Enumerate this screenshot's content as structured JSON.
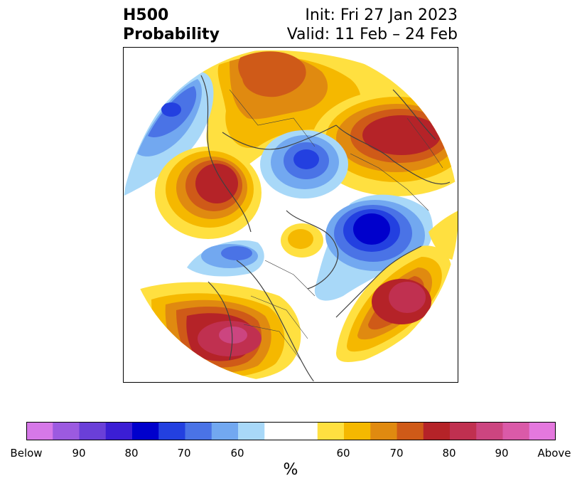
{
  "title": {
    "left_line1": "H500",
    "left_line2": "Probability",
    "right_line1": "Init: Fri 27 Jan 2023",
    "right_line2": "Valid: 11 Feb – 24 Feb"
  },
  "colorbar": {
    "unit": "%",
    "ticks": [
      "Below",
      "90",
      "80",
      "70",
      "60",
      "60",
      "70",
      "80",
      "90",
      "Above"
    ],
    "colors": [
      "#d678e8",
      "#9c5ae0",
      "#6a3fd8",
      "#3b1ed4",
      "#0000cc",
      "#2340e0",
      "#4a73e6",
      "#72a8f0",
      "#a8d8f8",
      "#ffffff",
      "#ffe040",
      "#f5b800",
      "#e08a10",
      "#cf5a18",
      "#b52328",
      "#c03050",
      "#cc4580",
      "#da5aa8",
      "#e478de"
    ]
  },
  "map": {
    "projection": "north-polar-stereographic",
    "anomalies": [
      {
        "name": "canada-high",
        "sign": "above",
        "peak": 70
      },
      {
        "name": "siberia-high",
        "sign": "above",
        "peak": 80
      },
      {
        "name": "arctic-low",
        "sign": "below",
        "peak": 70
      },
      {
        "name": "northwest-low",
        "sign": "below",
        "peak": 70
      },
      {
        "name": "europe-low",
        "sign": "below",
        "peak": 80
      },
      {
        "name": "scandinavia-high",
        "sign": "above",
        "peak": 80
      },
      {
        "name": "pacific-high",
        "sign": "above",
        "peak": 80
      },
      {
        "name": "alaska-low",
        "sign": "below",
        "peak": 60
      },
      {
        "name": "atlantic-high",
        "sign": "above",
        "peak": 90
      }
    ]
  }
}
